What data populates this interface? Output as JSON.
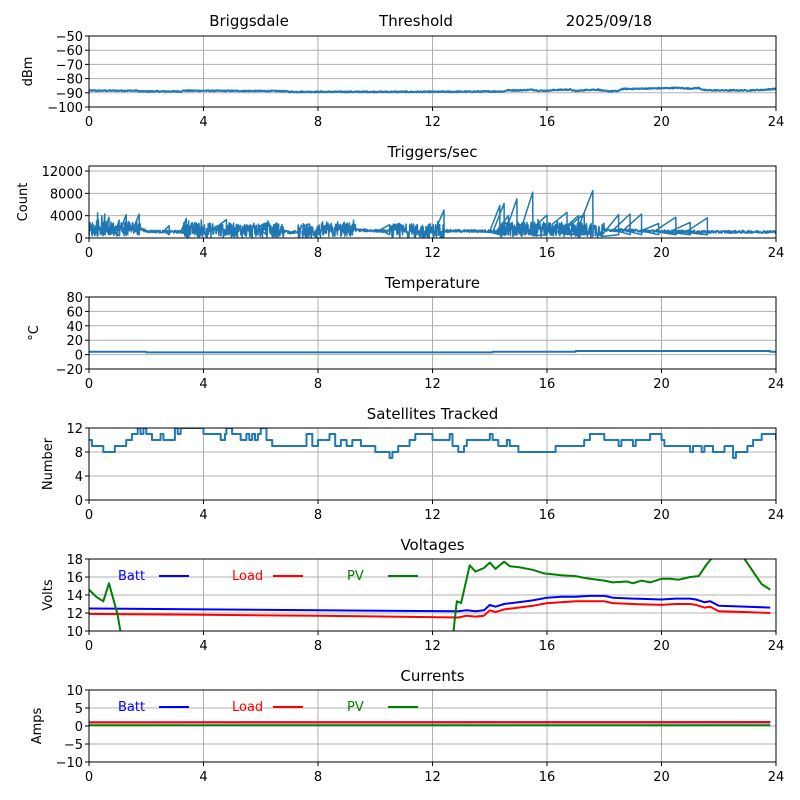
{
  "header": {
    "station": "Briggsdale",
    "mode": "Threshold",
    "date": "2025/09/18"
  },
  "chart_data": [
    {
      "id": "threshold",
      "type": "line",
      "title": "",
      "xlabel": "",
      "ylabel": "dBm",
      "xlim": [
        0,
        24
      ],
      "ylim": [
        -100,
        -50
      ],
      "xticks": [
        0,
        4,
        8,
        12,
        16,
        20,
        24
      ],
      "yticks": [
        -100,
        -90,
        -80,
        -70,
        -60,
        -50
      ],
      "ytick_labels": [
        "−100",
        "−90",
        "−80",
        "−70",
        "−60",
        "−50"
      ],
      "grid": true,
      "legend": null,
      "series": [
        {
          "name": "Threshold",
          "color": "#1f77b4",
          "noise": 0.4,
          "x": [
            0,
            1.7,
            1.75,
            3.2,
            3.3,
            6.8,
            7.0,
            10,
            12,
            13,
            14.5,
            14.6,
            15,
            15.5,
            15.7,
            16,
            16.3,
            16.8,
            17,
            17.5,
            17.8,
            18,
            18.5,
            18.6,
            19,
            20,
            20.5,
            21,
            21.3,
            21.5,
            22,
            23,
            23.5,
            24
          ],
          "y": [
            -88.5,
            -88.5,
            -89,
            -89,
            -88.5,
            -88.8,
            -89.3,
            -89.3,
            -89.3,
            -89.2,
            -89,
            -88.2,
            -88.3,
            -87.8,
            -88.5,
            -88.5,
            -88.0,
            -87.7,
            -88.8,
            -87.8,
            -87.8,
            -88.8,
            -88.8,
            -87.3,
            -87.2,
            -86.8,
            -86.5,
            -87.0,
            -86.6,
            -88.2,
            -88.3,
            -88.3,
            -88.0,
            -87.2
          ]
        }
      ]
    },
    {
      "id": "triggers",
      "type": "line",
      "title": "Triggers/sec",
      "xlabel": "",
      "ylabel": "Count",
      "xlim": [
        0,
        24
      ],
      "ylim": [
        0,
        12900
      ],
      "xticks": [
        0,
        4,
        8,
        12,
        16,
        20,
        24
      ],
      "yticks": [
        0,
        4000,
        8000,
        12000
      ],
      "ytick_labels": [
        "0",
        "4000",
        "8000",
        "12000"
      ],
      "grid": true,
      "legend": null,
      "series": [
        {
          "name": "Triggers",
          "color": "#1f77b4",
          "baseline_x": [
            0,
            1.8,
            2.0,
            3.3,
            3.4,
            6.8,
            7.0,
            9.0,
            10.5,
            12.0,
            14.3,
            14.5,
            16.5,
            18.5,
            20.0,
            21.5,
            24.0
          ],
          "baseline_y": [
            1600,
            1700,
            1200,
            1100,
            1500,
            1300,
            1000,
            1500,
            1200,
            1300,
            1200,
            1600,
            1500,
            1400,
            1200,
            1100,
            1100
          ],
          "busy_ranges": [
            [
              0,
              1.8
            ],
            [
              3.3,
              6.8
            ],
            [
              7.3,
              9.3
            ],
            [
              10.5,
              12.4
            ],
            [
              14.3,
              18.0
            ]
          ],
          "spikes_x": [
            0.3,
            0.45,
            0.55,
            0.7,
            1.05,
            1.3,
            1.75,
            2.8,
            3.4,
            4.8,
            6.2,
            7.7,
            9.2,
            10.5,
            12.4,
            14.35,
            14.5,
            14.65,
            14.95,
            15.5,
            16.0,
            16.7,
            17.1,
            17.3,
            17.6,
            18.5,
            18.9,
            19.3,
            19.9,
            20.5,
            21.0,
            21.6
          ],
          "spikes_y": [
            4500,
            4000,
            4300,
            3700,
            3200,
            4200,
            4300,
            2200,
            3500,
            3300,
            2700,
            2500,
            2300,
            2400,
            5000,
            5800,
            6200,
            4000,
            7000,
            8200,
            4100,
            4600,
            4000,
            4300,
            8500,
            4200,
            4300,
            4300,
            2600,
            3700,
            2800,
            3600
          ]
        }
      ]
    },
    {
      "id": "temperature",
      "type": "line",
      "title": "Temperature",
      "xlabel": "",
      "ylabel": "°C",
      "xlim": [
        0,
        24
      ],
      "ylim": [
        -20,
        80
      ],
      "xticks": [
        0,
        4,
        8,
        12,
        16,
        20,
        24
      ],
      "yticks": [
        -20,
        0,
        20,
        40,
        60,
        80
      ],
      "ytick_labels": [
        "−20",
        "0",
        "20",
        "40",
        "60",
        "80"
      ],
      "grid": true,
      "legend": null,
      "series": [
        {
          "name": "Temperature",
          "color": "#1f77b4",
          "step": true,
          "x": [
            0,
            2.0,
            14.1,
            17.0,
            23.8,
            24
          ],
          "y": [
            4,
            3,
            4,
            5,
            4,
            4
          ]
        }
      ]
    },
    {
      "id": "satellites",
      "type": "line",
      "title": "Satellites Tracked",
      "xlabel": "",
      "ylabel": "Number",
      "xlim": [
        0,
        24
      ],
      "ylim": [
        0,
        12
      ],
      "xticks": [
        0,
        4,
        8,
        12,
        16,
        20,
        24
      ],
      "yticks": [
        0,
        4,
        8,
        12
      ],
      "ytick_labels": [
        "0",
        "4",
        "8",
        "12"
      ],
      "grid": true,
      "legend": null,
      "series": [
        {
          "name": "Satellites",
          "color": "#1f77b4",
          "step": true,
          "x": [
            0,
            0.1,
            0.5,
            0.9,
            1.3,
            1.5,
            1.7,
            1.8,
            1.9,
            2.0,
            2.2,
            2.5,
            2.6,
            3.0,
            3.1,
            3.2,
            4.0,
            4.6,
            4.75,
            4.8,
            5.0,
            5.3,
            5.5,
            5.6,
            5.7,
            5.8,
            5.9,
            6.0,
            6.2,
            6.4,
            7.0,
            7.6,
            7.8,
            8.0,
            8.4,
            8.6,
            8.8,
            9.0,
            9.2,
            9.5,
            10.0,
            10.5,
            10.6,
            10.8,
            11.2,
            11.4,
            12.0,
            12.6,
            12.7,
            12.9,
            13.1,
            13.2,
            14.0,
            14.1,
            14.3,
            14.6,
            14.7,
            15.0,
            15.4,
            16.0,
            16.3,
            17.2,
            17.3,
            17.5,
            18.0,
            18.5,
            18.6,
            19.0,
            19.1,
            19.6,
            20.0,
            20.1,
            21.0,
            21.1,
            21.4,
            21.5,
            21.8,
            22.2,
            22.5,
            22.6,
            23.0,
            23.2,
            23.5,
            24.0
          ],
          "y": [
            10,
            9,
            8,
            9,
            10,
            11,
            12,
            11,
            12,
            11,
            10,
            11,
            10,
            12,
            11,
            12,
            11,
            10,
            11,
            12,
            11,
            10,
            11,
            10,
            11,
            10,
            11,
            12,
            10,
            9,
            9,
            11,
            9,
            10,
            11,
            9,
            10,
            9,
            10,
            9,
            8,
            7,
            8,
            9,
            10,
            11,
            10,
            11,
            9,
            8,
            9,
            10,
            11,
            10,
            9,
            10,
            9,
            8,
            8,
            8,
            9,
            9,
            10,
            11,
            10,
            9,
            10,
            9,
            10,
            11,
            10,
            9,
            8,
            9,
            8,
            9,
            8,
            9,
            7,
            8,
            9,
            10,
            11,
            10
          ]
        }
      ]
    },
    {
      "id": "voltages",
      "type": "line",
      "title": "Voltages",
      "xlabel": "",
      "ylabel": "Volts",
      "xlim": [
        0,
        24
      ],
      "ylim": [
        10,
        18
      ],
      "xticks": [
        0,
        4,
        8,
        12,
        16,
        20,
        24
      ],
      "yticks": [
        10,
        12,
        14,
        16,
        18
      ],
      "ytick_labels": [
        "10",
        "12",
        "14",
        "16",
        "18"
      ],
      "grid": true,
      "legend": {
        "placement": "top-left",
        "entries": [
          {
            "label": "Batt",
            "color": "#0000ff"
          },
          {
            "label": "Load",
            "color": "#ff0000"
          },
          {
            "label": "PV",
            "color": "#008000"
          }
        ]
      },
      "series": [
        {
          "name": "Batt",
          "color": "#0000ff",
          "x": [
            0,
            4,
            8,
            12.9,
            13.2,
            13.5,
            13.8,
            14.0,
            14.2,
            14.5,
            15.0,
            15.5,
            16.0,
            16.5,
            17.0,
            17.5,
            18.0,
            18.3,
            19.0,
            20.0,
            20.5,
            21.0,
            21.2,
            21.5,
            21.7,
            22.0,
            23.0,
            23.8
          ],
          "y": [
            12.5,
            12.4,
            12.3,
            12.2,
            12.3,
            12.2,
            12.3,
            12.9,
            12.7,
            13.0,
            13.2,
            13.4,
            13.7,
            13.8,
            13.8,
            13.9,
            13.9,
            13.7,
            13.6,
            13.5,
            13.6,
            13.6,
            13.5,
            13.2,
            13.3,
            12.8,
            12.7,
            12.6
          ]
        },
        {
          "name": "Load",
          "color": "#ff0000",
          "x": [
            0,
            4,
            8,
            12.9,
            13.2,
            13.5,
            13.8,
            14.0,
            14.2,
            14.5,
            15.0,
            15.5,
            16.0,
            16.5,
            17.0,
            17.5,
            18.0,
            18.3,
            19.0,
            20.0,
            20.5,
            21.0,
            21.2,
            21.5,
            21.7,
            22.0,
            23.0,
            23.8
          ],
          "y": [
            11.9,
            11.8,
            11.7,
            11.5,
            11.7,
            11.6,
            11.7,
            12.3,
            12.1,
            12.4,
            12.6,
            12.8,
            13.1,
            13.2,
            13.3,
            13.3,
            13.3,
            13.1,
            13.0,
            12.9,
            13.0,
            13.0,
            12.9,
            12.6,
            12.7,
            12.2,
            12.1,
            12.0
          ]
        },
        {
          "name": "PV",
          "color": "#008000",
          "x": [
            0,
            0.25,
            0.5,
            0.7,
            1.0,
            1.15,
            12.7,
            12.85,
            13.0,
            13.3,
            13.5,
            13.8,
            14.0,
            14.2,
            14.5,
            14.7,
            15.0,
            15.5,
            15.9,
            16.5,
            17.0,
            17.3,
            17.5,
            18.0,
            18.3,
            18.8,
            19.0,
            19.3,
            19.6,
            20.0,
            20.3,
            20.6,
            21.0,
            21.3,
            21.6,
            22.0,
            22.5,
            22.9,
            23.5,
            23.8
          ],
          "y": [
            14.6,
            13.8,
            13.3,
            15.3,
            11.8,
            9.0,
            9.0,
            13.3,
            13.1,
            17.3,
            16.6,
            17.0,
            17.6,
            16.9,
            17.7,
            17.2,
            17.1,
            16.8,
            16.4,
            16.2,
            16.1,
            15.9,
            15.8,
            15.6,
            15.4,
            15.5,
            15.3,
            15.6,
            15.4,
            15.8,
            15.8,
            15.7,
            16.0,
            16.1,
            17.5,
            19.0,
            19.5,
            18.0,
            15.2,
            14.6
          ]
        }
      ]
    },
    {
      "id": "currents",
      "type": "line",
      "title": "Currents",
      "xlabel": "",
      "ylabel": "Amps",
      "xlim": [
        0,
        24
      ],
      "ylim": [
        -10,
        10
      ],
      "xticks": [
        0,
        4,
        8,
        12,
        16,
        20,
        24
      ],
      "yticks": [
        -10,
        -5,
        0,
        5,
        10
      ],
      "ytick_labels": [
        "−10",
        "−5",
        "0",
        "5",
        "10"
      ],
      "grid": true,
      "legend": {
        "placement": "top-left",
        "entries": [
          {
            "label": "Batt",
            "color": "#0000ff"
          },
          {
            "label": "Load",
            "color": "#ff0000"
          },
          {
            "label": "PV",
            "color": "#008000"
          }
        ]
      },
      "series": [
        {
          "name": "Batt",
          "color": "#0000ff",
          "x": [
            0,
            24
          ],
          "y": [
            1.0,
            1.0
          ],
          "xmax": 23.8
        },
        {
          "name": "Load",
          "color": "#ff0000",
          "x": [
            0,
            24
          ],
          "y": [
            1.0,
            1.1
          ],
          "xmax": 23.8
        },
        {
          "name": "PV",
          "color": "#008000",
          "x": [
            0,
            24
          ],
          "y": [
            0.2,
            0.2
          ],
          "xmax": 23.8
        }
      ]
    }
  ]
}
